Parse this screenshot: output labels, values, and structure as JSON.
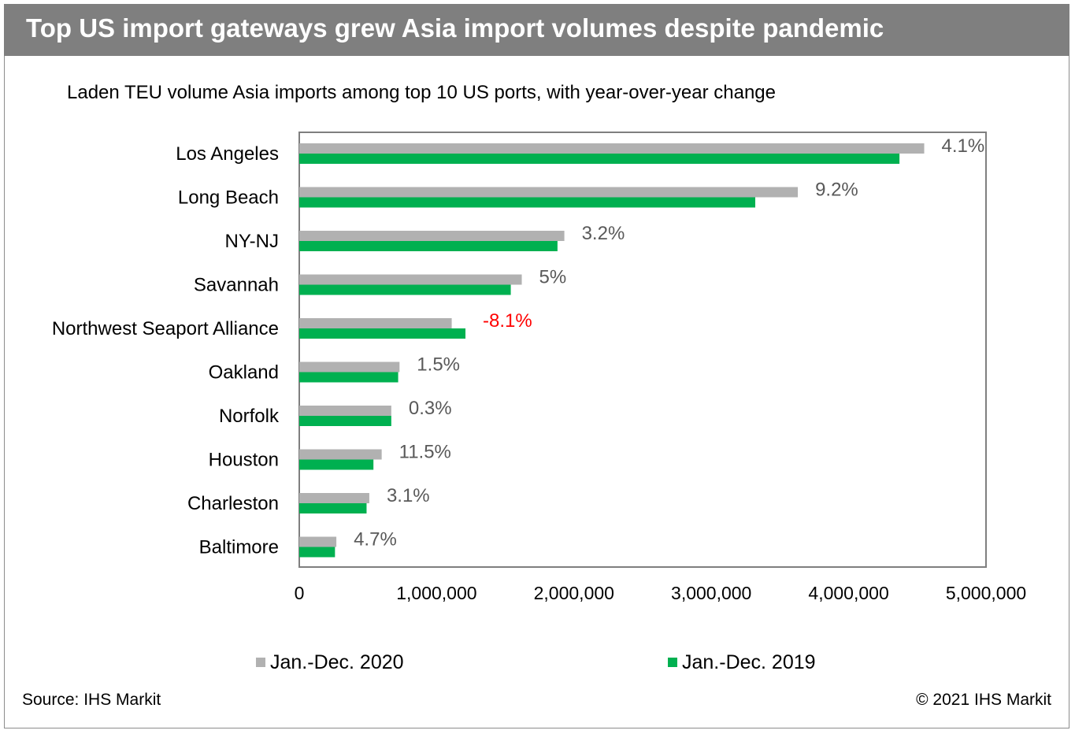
{
  "header": {
    "title": "Top US import gateways grew Asia import volumes despite pandemic",
    "subtitle": "Laden TEU volume Asia imports among top 10 US ports, with year-over-year change"
  },
  "footer": {
    "source": "Source: IHS Markit",
    "copyright": "© 2021 IHS Markit"
  },
  "colors": {
    "series_2020": "#b1b1b1",
    "series_2019": "#00b050",
    "negative_label": "#ff0000",
    "label": "#595959"
  },
  "chart_data": {
    "type": "bar",
    "orientation": "horizontal",
    "categories": [
      "Los Angeles",
      "Long Beach",
      "NY-NJ",
      "Savannah",
      "Northwest Seaport Alliance",
      "Oakland",
      "Norfolk",
      "Houston",
      "Charleston",
      "Baltimore"
    ],
    "series": [
      {
        "name": "Jan.-Dec. 2020",
        "values": [
          4550000,
          3630000,
          1930000,
          1620000,
          1110000,
          730000,
          670000,
          600000,
          510000,
          270000
        ]
      },
      {
        "name": "Jan.-Dec. 2019",
        "values": [
          4370000,
          3320000,
          1880000,
          1540000,
          1210000,
          720000,
          670000,
          540000,
          490000,
          260000
        ]
      }
    ],
    "data_labels": [
      "4.1%",
      "9.2%",
      "3.2%",
      "5%",
      "-8.1%",
      "1.5%",
      "0.3%",
      "11.5%",
      "3.1%",
      "4.7%"
    ],
    "x_ticks": [
      0,
      1000000,
      2000000,
      3000000,
      4000000,
      5000000
    ],
    "x_tick_labels": [
      "0",
      "1,000,000",
      "2,000,000",
      "3,000,000",
      "4,000,000",
      "5,000,000"
    ],
    "xlim": [
      0,
      5000000
    ],
    "xlabel": "",
    "ylabel": "",
    "grid": false,
    "legend_position": "bottom"
  }
}
